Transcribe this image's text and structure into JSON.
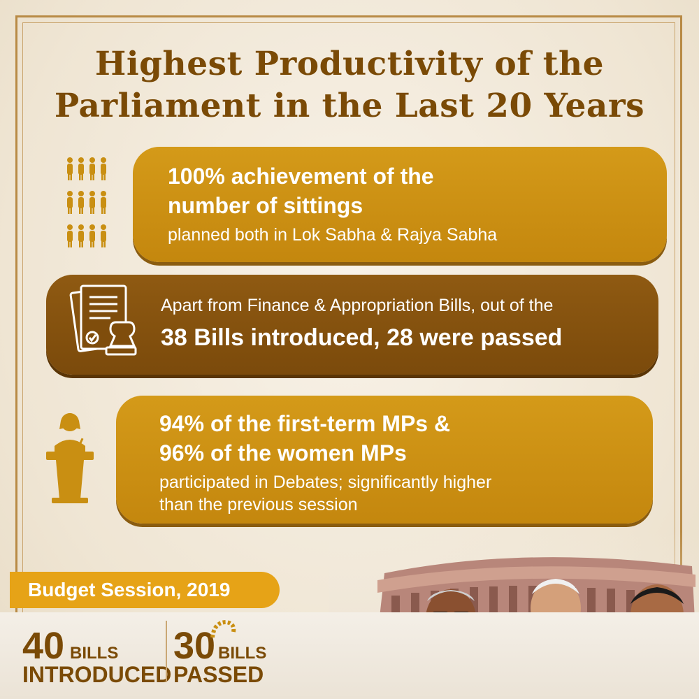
{
  "colors": {
    "title": "#7a4a06",
    "card_gold": "#c98f12",
    "card_brown": "#7f4d0c",
    "pill": "#e6a317",
    "text_light": "#ffffff"
  },
  "title": {
    "line1": "Highest Productivity of the",
    "line2": "Parliament in the Last 20 Years"
  },
  "cards": [
    {
      "icon": "people-group-icon",
      "headline_1": "100% achievement of the",
      "headline_2": "number of sittings",
      "detail_1": "planned both in Lok Sabha & Rajya Sabha"
    },
    {
      "icon": "document-stamp-icon",
      "detail_1": "Apart from Finance & Appropriation Bills, out of the",
      "headline_1": "38 Bills introduced, 28 were passed"
    },
    {
      "icon": "speaker-podium-icon",
      "headline_1": "94% of the first-term MPs &",
      "headline_2": "96% of the women MPs",
      "detail_1": "participated in Debates; significantly higher",
      "detail_2": "than the previous session"
    }
  ],
  "session": {
    "label": "Budget Session, 2019"
  },
  "stats": {
    "introduced_number": "40",
    "introduced_unit": "BILLS",
    "introduced_label": "INTRODUCED",
    "passed_number": "30",
    "passed_unit": "BILLS",
    "passed_label": "PASSED"
  }
}
